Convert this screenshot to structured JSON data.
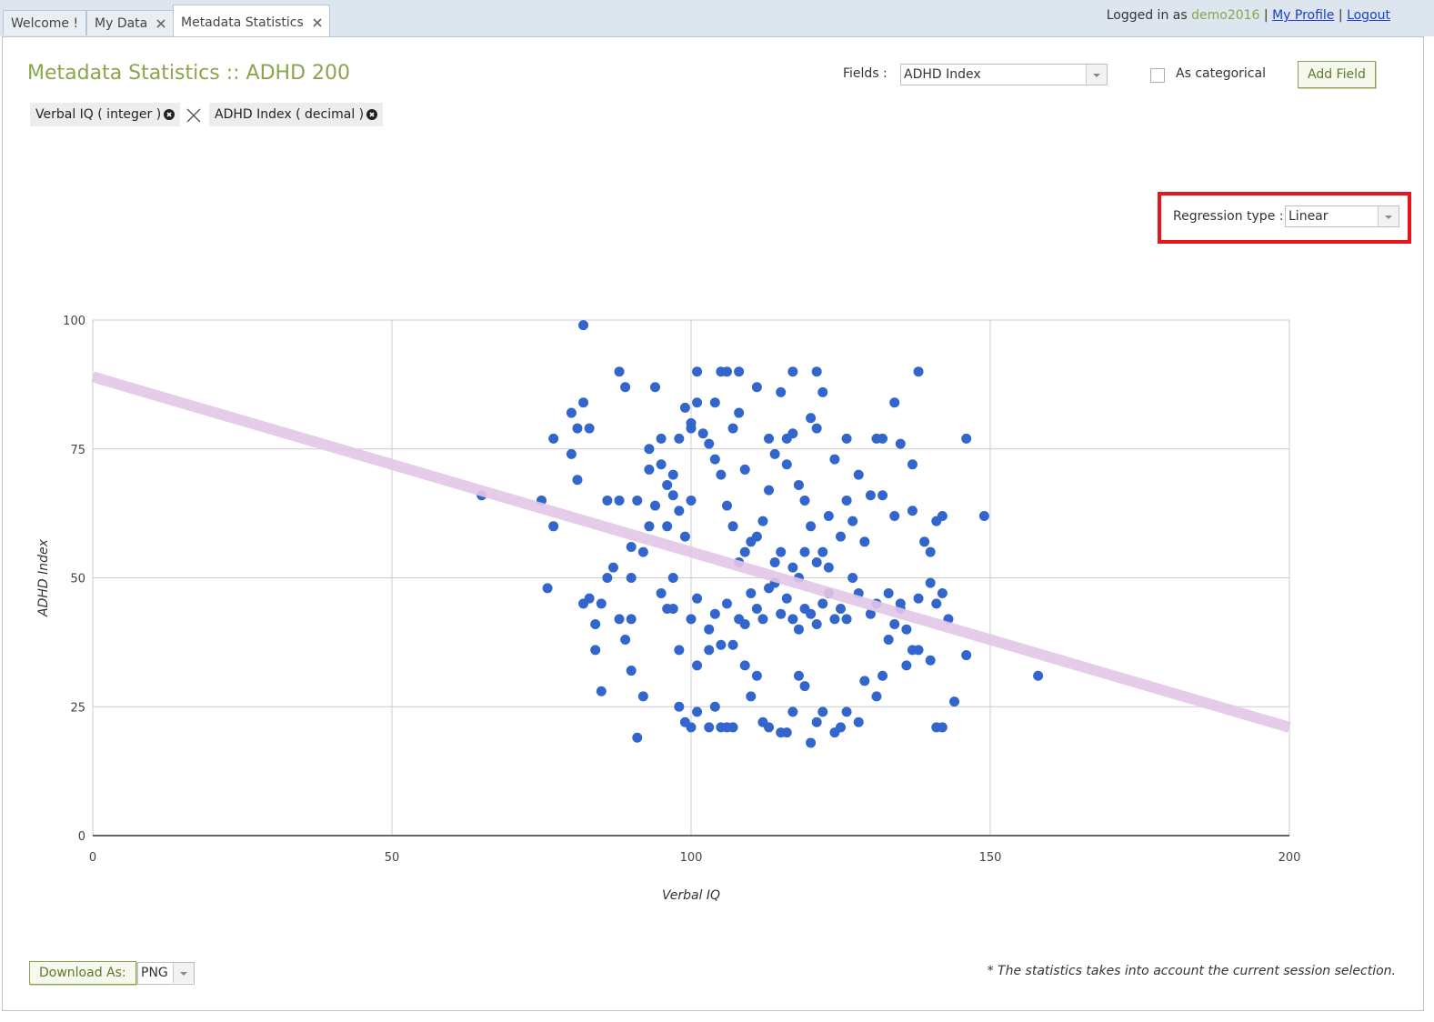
{
  "tabs": [
    "Welcome !",
    "My Data",
    "Metadata Statistics"
  ],
  "login": {
    "prefix": "Logged in as",
    "user": "demo2016",
    "separator": "|",
    "profile": "My Profile",
    "logout": "Logout"
  },
  "header": {
    "title": "Metadata Statistics :: ADHD 200",
    "fields_label": "Fields :",
    "fields_value": "ADHD Index",
    "categorical_label": "As categorical",
    "add_button": "Add Field"
  },
  "chips": [
    "Verbal IQ ( integer )",
    "ADHD Index ( decimal )"
  ],
  "regression": {
    "label": "Regression type :",
    "value": "Linear"
  },
  "footer": {
    "download_label": "Download As:",
    "format": "PNG",
    "note": "* The statistics takes into account the current session selection."
  },
  "chart_data": {
    "type": "scatter",
    "x_label": "Verbal IQ",
    "y_label": "ADHD Index",
    "xlim": [
      0,
      200
    ],
    "ylim": [
      0,
      100
    ],
    "xticks": [
      0,
      50,
      100,
      150,
      200
    ],
    "yticks": [
      0,
      25,
      50,
      75,
      100
    ],
    "grid": true,
    "color": "#3366cc",
    "x": [
      82,
      65,
      75,
      77,
      76,
      158,
      149,
      146,
      138,
      134,
      88,
      101,
      105,
      106,
      108,
      117,
      121,
      89,
      94,
      122,
      115,
      111,
      82,
      80,
      81,
      83,
      77,
      80,
      81,
      85,
      84,
      83,
      82,
      84,
      85,
      86,
      86,
      87,
      88,
      88,
      89,
      90,
      90,
      91,
      92,
      90,
      90,
      91,
      93,
      93,
      95,
      96,
      97,
      97,
      98,
      98,
      99,
      100,
      101,
      101,
      103,
      104,
      105,
      106,
      107,
      103,
      105,
      107,
      109,
      110,
      111,
      112,
      113,
      115,
      116,
      117,
      118,
      119,
      120,
      121,
      122,
      124,
      125,
      126,
      128,
      129,
      131,
      132,
      133,
      134,
      135,
      136,
      137,
      138,
      140,
      141,
      142,
      143,
      144,
      146,
      140,
      141,
      142,
      139,
      137,
      134,
      132,
      129,
      130,
      128,
      126,
      127,
      125,
      123,
      122,
      120,
      118,
      116,
      114,
      113,
      112,
      111,
      110,
      109,
      108,
      107,
      106,
      105,
      104,
      103,
      102,
      100,
      99,
      100,
      99,
      98,
      97,
      96,
      95,
      94,
      93,
      92,
      95,
      96,
      100,
      101,
      103,
      104,
      106,
      108,
      109,
      110,
      111,
      112,
      113,
      114,
      115,
      116,
      117,
      118,
      119,
      120,
      121,
      122,
      123,
      124,
      125,
      126,
      127,
      128,
      130,
      131,
      133,
      135,
      136,
      138,
      140,
      141,
      142,
      115,
      114,
      117,
      118,
      119,
      121,
      123,
      119,
      121,
      120,
      124,
      126,
      131,
      135,
      137,
      132,
      117,
      116,
      113,
      109,
      108,
      107,
      104,
      101,
      100,
      98,
      97
    ],
    "values": [
      99,
      66,
      65,
      60,
      48,
      31,
      62,
      77,
      90,
      84,
      90,
      90,
      90,
      90,
      90,
      90,
      90,
      87,
      87,
      86,
      86,
      87,
      84,
      82,
      79,
      79,
      77,
      74,
      69,
      28,
      36,
      46,
      45,
      41,
      45,
      50,
      65,
      52,
      65,
      42,
      38,
      32,
      42,
      19,
      27,
      50,
      56,
      65,
      75,
      71,
      77,
      60,
      50,
      44,
      36,
      25,
      22,
      21,
      24,
      33,
      21,
      25,
      21,
      21,
      21,
      36,
      37,
      37,
      33,
      27,
      31,
      22,
      21,
      20,
      20,
      24,
      31,
      29,
      18,
      22,
      24,
      20,
      21,
      24,
      22,
      30,
      27,
      31,
      38,
      41,
      45,
      33,
      36,
      36,
      34,
      21,
      21,
      42,
      26,
      35,
      55,
      61,
      62,
      57,
      63,
      62,
      66,
      57,
      66,
      70,
      65,
      61,
      58,
      62,
      55,
      60,
      68,
      72,
      74,
      77,
      61,
      58,
      57,
      55,
      53,
      60,
      64,
      70,
      73,
      76,
      78,
      80,
      83,
      65,
      58,
      63,
      66,
      68,
      72,
      64,
      60,
      55,
      47,
      44,
      42,
      46,
      40,
      43,
      45,
      42,
      41,
      47,
      44,
      42,
      48,
      49,
      43,
      46,
      42,
      40,
      44,
      43,
      41,
      45,
      47,
      42,
      44,
      42,
      50,
      47,
      43,
      45,
      47,
      44,
      40,
      46,
      49,
      45,
      47,
      55,
      53,
      52,
      50,
      55,
      53,
      52,
      65,
      79,
      81,
      73,
      77,
      77,
      76,
      72,
      77,
      78,
      77,
      67,
      71,
      82,
      79,
      84,
      84,
      79,
      77,
      70
    ],
    "trendline": {
      "x": [
        0,
        200
      ],
      "y": [
        89,
        21
      ],
      "color": "#e2c6e6"
    }
  }
}
